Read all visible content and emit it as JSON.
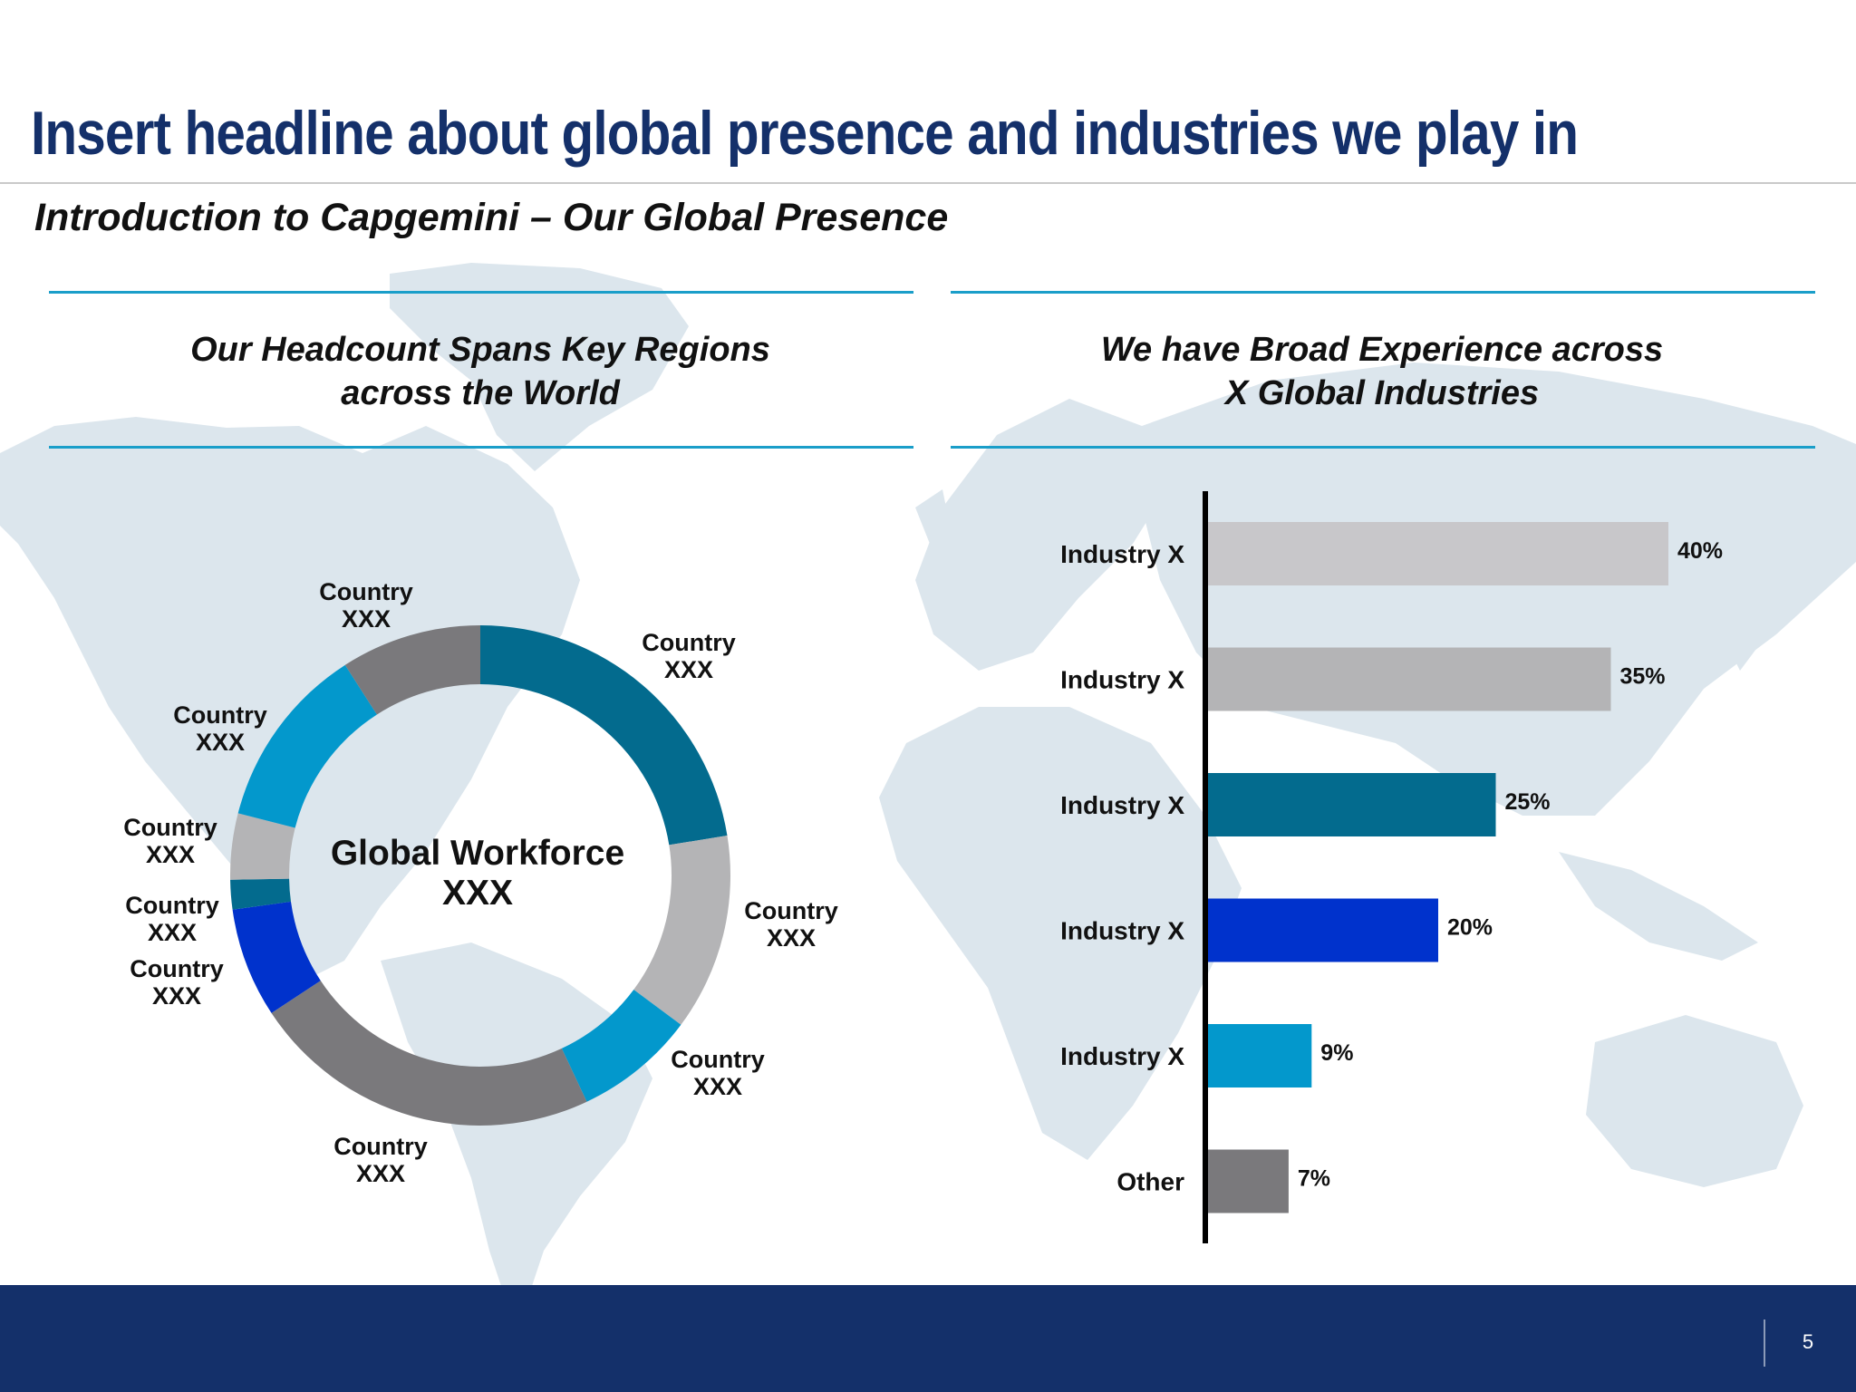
{
  "slide": {
    "headline": "Insert headline about global presence and industries we play in",
    "subtitle": "Introduction to Capgemini – Our Global Presence",
    "page_number": "5"
  },
  "left_panel": {
    "title_line1": "Our Headcount Spans Key Regions",
    "title_line2": "across the World",
    "center_line1": "Global Workforce",
    "center_line2": "XXX"
  },
  "right_panel": {
    "title_line1": "We have Broad Experience across",
    "title_line2": "X Global Industries"
  },
  "colors": {
    "headline": "#14306a",
    "footer": "#14306a",
    "rule": "#1a9ec9",
    "teal_dark": "#036b8e",
    "grey_dark": "#7a797c",
    "grey_light": "#b4b4b6",
    "grey_lighter": "#c8c7ca",
    "cyan": "#0398cc",
    "blue": "#0032cc",
    "map": "#dce6ed"
  },
  "chart_data": [
    {
      "type": "pie",
      "variant": "donut",
      "title": "",
      "center_text": [
        "Global Workforce",
        "XXX"
      ],
      "slices": [
        {
          "label": "Country XXX",
          "value": 24.7,
          "color": "#036b8e"
        },
        {
          "label": "Country XXX",
          "value": 14.0,
          "color": "#b4b4b6"
        },
        {
          "label": "Country XXX",
          "value": 8.6,
          "color": "#0398cc"
        },
        {
          "label": "Country XXX",
          "value": 25.0,
          "color": "#7a797c"
        },
        {
          "label": "Country XXX",
          "value": 7.8,
          "color": "#0032cc"
        },
        {
          "label": "Country XXX",
          "value": 2.1,
          "color": "#036b8e"
        },
        {
          "label": "Country XXX",
          "value": 4.7,
          "color": "#b4b4b6"
        },
        {
          "label": "Country XXX",
          "value": 13.1,
          "color": "#0398cc"
        },
        {
          "label": "Country XXX",
          "value": 10.0,
          "color": "#7a797c"
        }
      ],
      "slice_labels": [
        [
          "Country",
          "XXX"
        ],
        [
          "Country",
          "XXX"
        ],
        [
          "Country",
          "XXX"
        ],
        [
          "Country",
          "XXX"
        ],
        [
          "Country",
          "XXX"
        ],
        [
          "Country",
          "XXX"
        ],
        [
          "Country",
          "XXX"
        ],
        [
          "Country",
          "XXX"
        ],
        [
          "Country",
          "XXX"
        ]
      ]
    },
    {
      "type": "bar",
      "orientation": "horizontal",
      "title": "",
      "categories": [
        "Industry X",
        "Industry X",
        "Industry X",
        "Industry X",
        "Industry X",
        "Other"
      ],
      "values": [
        40,
        35,
        25,
        20,
        9,
        7
      ],
      "value_labels": [
        "40%",
        "35%",
        "25%",
        "20%",
        "9%",
        "7%"
      ],
      "colors": [
        "#c8c7ca",
        "#b4b4b6",
        "#036b8e",
        "#0032cc",
        "#0398cc",
        "#7a797c"
      ],
      "unit": "%",
      "xlim": [
        0,
        40
      ],
      "grid": false,
      "legend": "none"
    }
  ]
}
